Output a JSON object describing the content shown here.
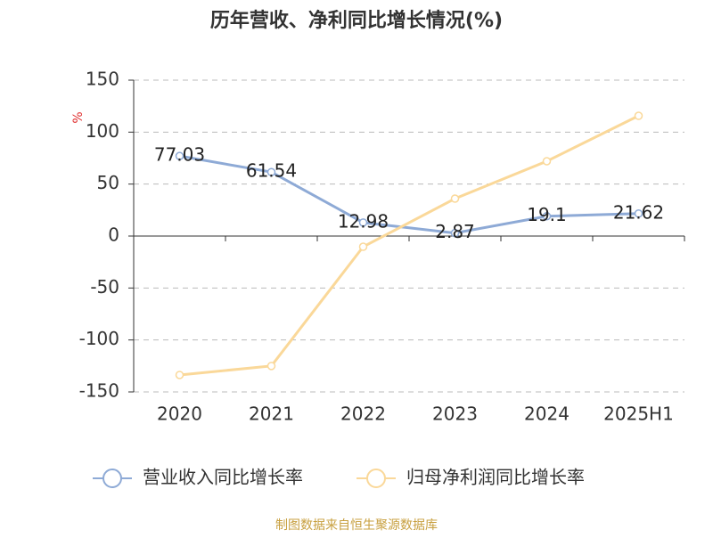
{
  "chart_data": {
    "type": "line",
    "title": "历年营收、净利同比增长情况(%)",
    "y_label": "%",
    "categories": [
      "2020",
      "2021",
      "2022",
      "2023",
      "2024",
      "2025H1"
    ],
    "series": [
      {
        "name": "营业收入同比增长率",
        "color": "#8eaad6",
        "values": [
          77.03,
          61.54,
          12.98,
          2.87,
          19.1,
          21.62
        ],
        "data_labels": true
      },
      {
        "name": "归母净利润同比增长率",
        "color": "#fad899",
        "values": [
          -133.7,
          -125,
          -10.3,
          36,
          72,
          115.7
        ],
        "data_labels": false
      }
    ],
    "ylim": [
      -150,
      150
    ],
    "yticks": [
      150,
      100,
      50,
      0,
      -50,
      -100,
      -150
    ],
    "grid": true,
    "legend": "bottom",
    "source": "制图数据来自恒生聚源数据库"
  }
}
